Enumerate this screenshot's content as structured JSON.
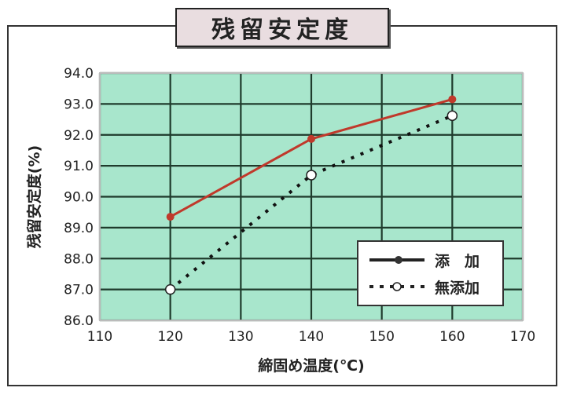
{
  "chart_data": {
    "type": "line",
    "title": "残留安定度",
    "xlabel": "締固め温度(℃)",
    "ylabel": "残留安定度(%)",
    "xlim": [
      110,
      170
    ],
    "ylim": [
      86.0,
      94.0
    ],
    "xticks": [
      "110",
      "120",
      "130",
      "140",
      "150",
      "160",
      "170"
    ],
    "yticks": [
      "86.0",
      "87.0",
      "88.0",
      "89.0",
      "90.0",
      "91.0",
      "92.0",
      "93.0",
      "94.0"
    ],
    "grid": true,
    "legend_position": "bottom-right",
    "background_color": "#a8e6cc",
    "series": [
      {
        "name": "添　加",
        "marker": "filled-circle",
        "line": "solid",
        "color": "#c0392b",
        "x": [
          120,
          140,
          160
        ],
        "y": [
          89.35,
          91.87,
          93.15
        ]
      },
      {
        "name": "無添加",
        "marker": "open-circle",
        "line": "dotted",
        "color": "#111111",
        "x": [
          120,
          140,
          160
        ],
        "y": [
          87.0,
          90.7,
          92.62
        ]
      }
    ]
  }
}
